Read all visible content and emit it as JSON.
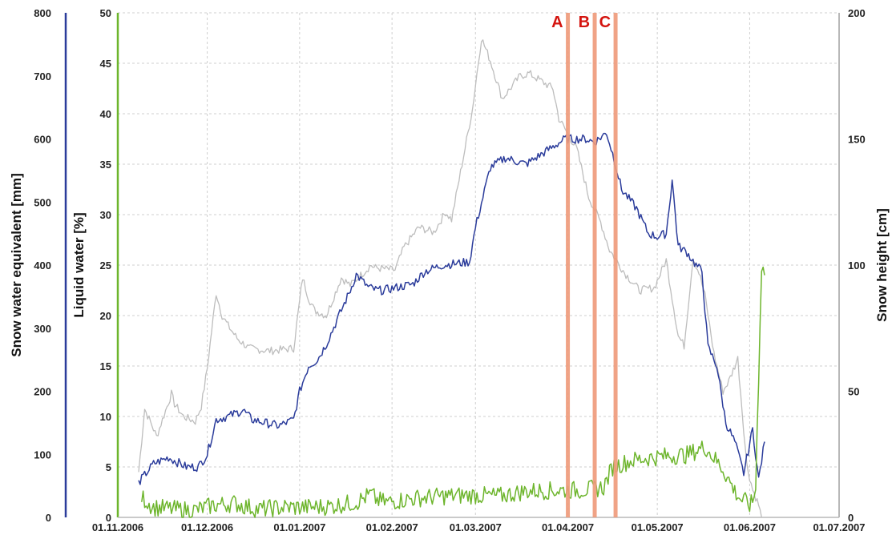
{
  "chart_data": {
    "type": "line",
    "title": "",
    "xlabel": "",
    "grid": true,
    "x_axis": {
      "start": "2006-11-01",
      "end": "2007-07-01",
      "tick_labels": [
        "01.11.2006",
        "01.12.2006",
        "01.01.2007",
        "01.02.2007",
        "01.03.2007",
        "01.04.2007",
        "01.05.2007",
        "01.06.2007",
        "01.07.2007"
      ],
      "tick_dates": [
        "2006-11-01",
        "2006-12-01",
        "2007-01-01",
        "2007-02-01",
        "2007-03-01",
        "2007-04-01",
        "2007-05-01",
        "2007-06-01",
        "2007-07-01"
      ]
    },
    "y_axes": {
      "swe": {
        "label": "Snow water equivalent [mm]",
        "ylim": [
          0,
          800
        ],
        "ticks": [
          "0",
          "100",
          "200",
          "300",
          "400",
          "500",
          "600",
          "700",
          "800"
        ],
        "color": "#2b3c9b"
      },
      "liquid": {
        "label": "Liquid water [%]",
        "ylim": [
          0,
          50
        ],
        "ticks": [
          "0",
          "5",
          "10",
          "15",
          "20",
          "25",
          "30",
          "35",
          "40",
          "45",
          "50"
        ],
        "color": "#6db52c"
      },
      "height": {
        "label": "Snow height [cm]",
        "ylim": [
          0,
          200
        ],
        "ticks": [
          "0",
          "50",
          "100",
          "150",
          "200"
        ],
        "color": "#9e9e9e"
      }
    },
    "series": [
      {
        "axis": "height",
        "color": "#bdbdbd",
        "x": [
          "2006-11-08",
          "2006-11-10",
          "2006-11-13",
          "2006-11-14",
          "2006-11-19",
          "2006-11-20",
          "2006-11-23",
          "2006-11-27",
          "2006-11-29",
          "2006-12-01",
          "2006-12-04",
          "2006-12-06",
          "2006-12-08",
          "2006-12-11",
          "2006-12-15",
          "2006-12-22",
          "2006-12-30",
          "2007-01-02",
          "2007-01-04",
          "2007-01-06",
          "2007-01-10",
          "2007-01-15",
          "2007-01-18",
          "2007-01-25",
          "2007-01-26",
          "2007-02-02",
          "2007-02-05",
          "2007-02-10",
          "2007-02-15",
          "2007-02-19",
          "2007-02-21",
          "2007-02-28",
          "2007-03-03",
          "2007-03-06",
          "2007-03-10",
          "2007-03-14",
          "2007-03-16",
          "2007-03-19",
          "2007-03-27",
          "2007-03-29",
          "2007-04-04",
          "2007-04-08",
          "2007-04-12",
          "2007-04-15",
          "2007-04-20",
          "2007-04-25",
          "2007-04-30",
          "2007-05-04",
          "2007-05-08",
          "2007-05-10",
          "2007-05-13",
          "2007-05-15",
          "2007-05-17",
          "2007-05-20",
          "2007-05-23",
          "2007-05-25",
          "2007-05-28",
          "2007-05-31",
          "2007-06-02",
          "2007-06-04",
          "2007-06-05"
        ],
        "values": [
          18,
          43,
          35,
          32,
          49,
          45,
          40,
          38,
          44,
          59,
          89,
          80,
          76,
          71,
          67,
          66,
          67,
          95,
          87,
          82,
          80,
          95,
          92,
          100,
          99,
          98,
          107,
          115,
          113,
          121,
          118,
          162,
          190,
          181,
          166,
          172,
          175,
          176,
          170,
          158,
          146,
          127,
          117,
          106,
          97,
          90,
          91,
          102,
          72,
          68,
          103,
          97,
          88,
          65,
          50,
          54,
          63,
          21,
          11,
          5,
          0
        ]
      },
      {
        "axis": "swe",
        "color": "#2b3c9b",
        "x": [
          "2006-11-08",
          "2006-11-13",
          "2006-11-18",
          "2006-11-24",
          "2006-11-28",
          "2006-12-01",
          "2006-12-04",
          "2006-12-08",
          "2006-12-13",
          "2006-12-16",
          "2006-12-25",
          "2006-12-30",
          "2007-01-01",
          "2007-01-04",
          "2007-01-07",
          "2007-01-10",
          "2007-01-18",
          "2007-01-20",
          "2007-01-24",
          "2007-01-27",
          "2007-01-29",
          "2007-02-08",
          "2007-02-12",
          "2007-02-18",
          "2007-02-27",
          "2007-03-01",
          "2007-03-06",
          "2007-03-11",
          "2007-03-18",
          "2007-03-31",
          "2007-04-07",
          "2007-04-10",
          "2007-04-14",
          "2007-04-17",
          "2007-04-19",
          "2007-04-24",
          "2007-04-28",
          "2007-05-01",
          "2007-05-04",
          "2007-05-06",
          "2007-05-08",
          "2007-05-11",
          "2007-05-14",
          "2007-05-16",
          "2007-05-18",
          "2007-05-21",
          "2007-05-24",
          "2007-05-27",
          "2007-05-30",
          "2007-06-02",
          "2007-06-04",
          "2007-06-06"
        ],
        "values": [
          55,
          85,
          95,
          80,
          80,
          100,
          155,
          160,
          170,
          155,
          145,
          155,
          200,
          240,
          250,
          275,
          360,
          385,
          365,
          360,
          360,
          370,
          390,
          400,
          405,
          460,
          555,
          570,
          560,
          600,
          600,
          595,
          610,
          560,
          520,
          490,
          450,
          445,
          450,
          535,
          430,
          420,
          400,
          390,
          270,
          240,
          150,
          120,
          70,
          140,
          60,
          120
        ]
      },
      {
        "axis": "liquid",
        "color": "#6db52c",
        "x": [
          "2006-11-09",
          "2006-11-13",
          "2006-11-20",
          "2006-11-27",
          "2006-12-03",
          "2006-12-10",
          "2006-12-18",
          "2006-12-27",
          "2007-01-04",
          "2007-01-11",
          "2007-01-20",
          "2007-01-25",
          "2007-01-27",
          "2007-01-30",
          "2007-02-09",
          "2007-02-18",
          "2007-02-28",
          "2007-03-09",
          "2007-03-18",
          "2007-03-31",
          "2007-04-05",
          "2007-04-09",
          "2007-04-13",
          "2007-04-16",
          "2007-04-22",
          "2007-04-28",
          "2007-05-05",
          "2007-05-11",
          "2007-05-17",
          "2007-05-23",
          "2007-05-27",
          "2007-05-29",
          "2007-05-31",
          "2007-06-01",
          "2007-06-02",
          "2007-06-03",
          "2007-06-04",
          "2007-06-05",
          "2007-06-06"
        ],
        "values": [
          2,
          1,
          0.8,
          0.7,
          1.2,
          1.4,
          0.8,
          1,
          1,
          1.1,
          1.5,
          2.3,
          1.7,
          1.5,
          1.9,
          2.1,
          2.2,
          2.1,
          2.6,
          2.7,
          2.7,
          2.8,
          3,
          5,
          5.6,
          5.9,
          6.1,
          6.2,
          7,
          4.8,
          2.6,
          1.8,
          1.5,
          1.2,
          1.5,
          3,
          14,
          25,
          24
        ]
      }
    ],
    "markers": [
      {
        "label": "A",
        "x": "2007-04-01",
        "color": "#d4140f"
      },
      {
        "label": "B",
        "x": "2007-04-10",
        "color": "#d4140f"
      },
      {
        "label": "C",
        "x": "2007-04-17",
        "color": "#d4140f"
      }
    ]
  }
}
